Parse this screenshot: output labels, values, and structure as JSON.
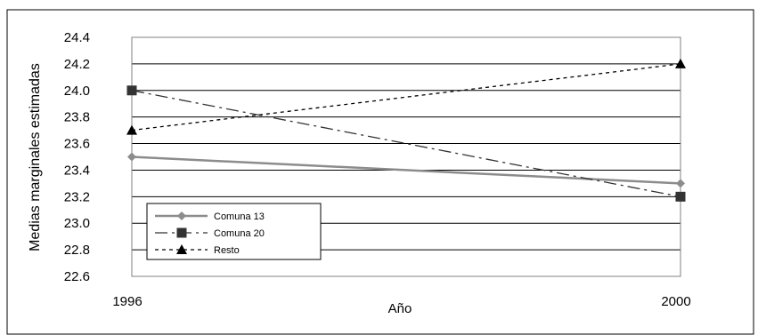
{
  "chart_data": {
    "type": "line",
    "title": "",
    "xlabel": "Año",
    "ylabel": "Medias marginales estimadas",
    "x": [
      "1996",
      "2000"
    ],
    "ylim": [
      22.6,
      24.4
    ],
    "yticks": [
      "22.6",
      "22.8",
      "23.0",
      "23.2",
      "23.4",
      "23.6",
      "23.8",
      "24.0",
      "24.2",
      "24.4"
    ],
    "grid": "horizontal",
    "legend_position": "bottom-left",
    "series": [
      {
        "name": "Comuna 13",
        "values": [
          23.5,
          23.3
        ],
        "color": "#8c8c8c",
        "dash": "solid",
        "marker": "diamond"
      },
      {
        "name": "Comuna 20",
        "values": [
          24.0,
          23.2
        ],
        "color": "#333333",
        "dash": "dash-dot",
        "marker": "square"
      },
      {
        "name": "Resto",
        "values": [
          23.7,
          24.2
        ],
        "color": "#000000",
        "dash": "dotted",
        "marker": "triangle"
      }
    ]
  }
}
